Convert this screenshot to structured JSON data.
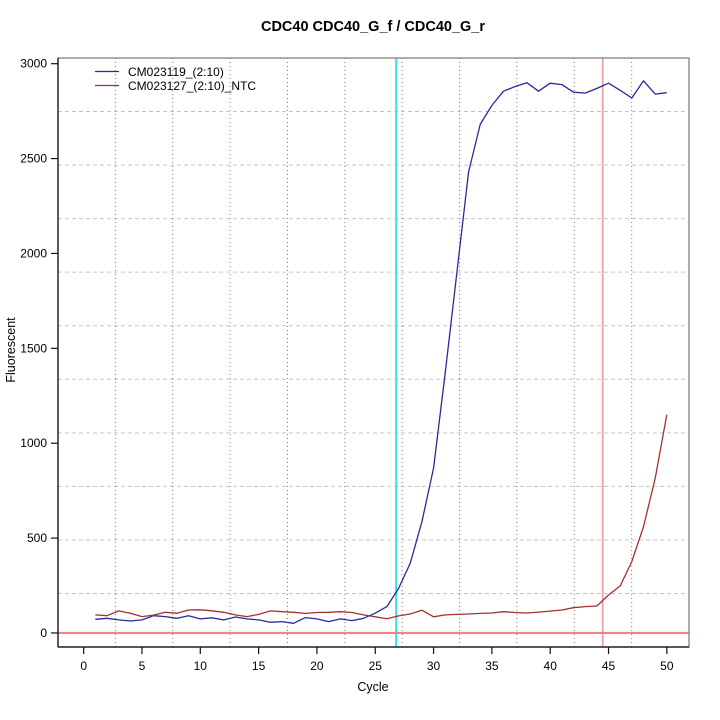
{
  "title": "CDC40  CDC40_G_f / CDC40_G_r",
  "chart_data": {
    "type": "line",
    "title": "CDC40  CDC40_G_f / CDC40_G_r",
    "xlabel": "Cycle",
    "ylabel": "Fluorescent",
    "x_ticks": [
      0,
      5,
      10,
      15,
      20,
      25,
      30,
      35,
      40,
      45,
      50
    ],
    "y_ticks": [
      0,
      500,
      1000,
      1500,
      2000,
      2500,
      3000
    ],
    "xlim": [
      -2.2,
      51.9
    ],
    "ylim": [
      -74,
      3030
    ],
    "grid": {
      "nx": 11,
      "ny": 11,
      "h_style": "dashed",
      "v_style": "dotted",
      "h_color": "#c6c6c6",
      "v_color": "#7a7a7a"
    },
    "legend_position": "top-left",
    "cycles": [
      1,
      2,
      3,
      4,
      5,
      6,
      7,
      8,
      9,
      10,
      11,
      12,
      13,
      14,
      15,
      16,
      17,
      18,
      19,
      20,
      21,
      22,
      23,
      24,
      25,
      26,
      27,
      28,
      29,
      30,
      31,
      32,
      33,
      34,
      35,
      36,
      37,
      38,
      39,
      40,
      41,
      42,
      43,
      44,
      45,
      46,
      47,
      48,
      49,
      50
    ],
    "series": [
      {
        "name": "CM023119_(2:10)",
        "color": "#2a2a9e",
        "values": [
          72,
          77,
          69,
          63,
          69,
          91,
          86,
          77,
          91,
          74,
          80,
          69,
          84,
          74,
          69,
          56,
          60,
          51,
          81,
          74,
          60,
          74,
          65,
          77,
          104,
          139,
          235,
          367,
          586,
          870,
          1370,
          1900,
          2430,
          2680,
          2780,
          2855,
          2880,
          2900,
          2855,
          2897,
          2890,
          2850,
          2845,
          2870,
          2897,
          2860,
          2819,
          2910,
          2840,
          2847
        ]
      },
      {
        "name": "CM023127_(2:10)_NTC",
        "color": "#a03232",
        "values": [
          95,
          91,
          116,
          104,
          86,
          94,
          109,
          104,
          121,
          122,
          117,
          109,
          95,
          86,
          98,
          116,
          112,
          109,
          103,
          108,
          109,
          112,
          108,
          95,
          85,
          75,
          90,
          100,
          120,
          85,
          95,
          98,
          100,
          103,
          105,
          112,
          108,
          105,
          110,
          115,
          121,
          133,
          139,
          142,
          200,
          248,
          376,
          560,
          815,
          1150
        ]
      }
    ],
    "threshold_lines": {
      "cyan_vline_cycle": 26.8,
      "cyan_color": "#3fe0e6",
      "red_vline_cycle": 44.5,
      "red_vline_color": "#f0a0a0",
      "red_hline_value": 0,
      "red_hline_color": "#e88585"
    },
    "box_color": "#8a8a8a",
    "axis_color": "#111111"
  },
  "legend": {
    "items": [
      {
        "label": "CM023119_(2:10)",
        "color": "#2a2a9e"
      },
      {
        "label": "CM023127_(2:10)_NTC",
        "color": "#a03232"
      }
    ]
  }
}
